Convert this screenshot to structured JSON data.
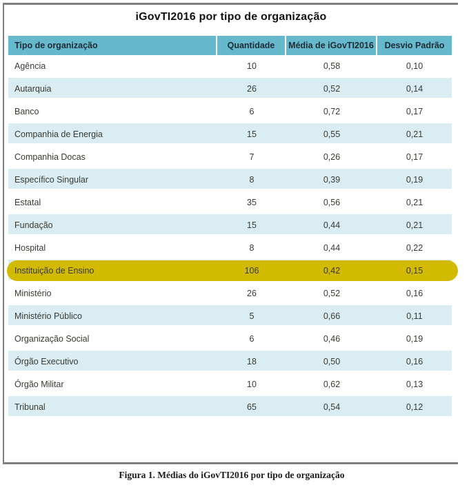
{
  "title": "iGovTI2016 por tipo de organização",
  "caption": "Figura 1. Médias do iGovTI2016 por tipo de organização",
  "colors": {
    "header_bg": "#66B8CD",
    "row_alt_bg": "#D9EDF3",
    "highlight_bg": "#D1BA00",
    "frame_border": "#7F7F7F",
    "header_text": "#1C2B33",
    "body_text": "#3A3A32"
  },
  "table": {
    "columns": [
      "Tipo de organização",
      "Quantidade",
      "Média de iGovTI2016",
      "Desvio Padrão"
    ],
    "rows": [
      {
        "tipo": "Agência",
        "quantidade": "10",
        "media": "0,58",
        "desvio": "0,10",
        "highlight": false
      },
      {
        "tipo": "Autarquia",
        "quantidade": "26",
        "media": "0,52",
        "desvio": "0,14",
        "highlight": false
      },
      {
        "tipo": "Banco",
        "quantidade": "6",
        "media": "0,72",
        "desvio": "0,17",
        "highlight": false
      },
      {
        "tipo": "Companhia de Energia",
        "quantidade": "15",
        "media": "0,55",
        "desvio": "0,21",
        "highlight": false
      },
      {
        "tipo": "Companhia Docas",
        "quantidade": "7",
        "media": "0,26",
        "desvio": "0,17",
        "highlight": false
      },
      {
        "tipo": "Específico Singular",
        "quantidade": "8",
        "media": "0,39",
        "desvio": "0,19",
        "highlight": false
      },
      {
        "tipo": "Estatal",
        "quantidade": "35",
        "media": "0,56",
        "desvio": "0,21",
        "highlight": false
      },
      {
        "tipo": "Fundação",
        "quantidade": "15",
        "media": "0,44",
        "desvio": "0,21",
        "highlight": false
      },
      {
        "tipo": "Hospital",
        "quantidade": "8",
        "media": "0,44",
        "desvio": "0,22",
        "highlight": false
      },
      {
        "tipo": "Instituição de Ensino",
        "quantidade": "106",
        "media": "0,42",
        "desvio": "0,15",
        "highlight": true
      },
      {
        "tipo": "Ministério",
        "quantidade": "26",
        "media": "0,52",
        "desvio": "0,16",
        "highlight": false
      },
      {
        "tipo": "Ministério Público",
        "quantidade": "5",
        "media": "0,66",
        "desvio": "0,11",
        "highlight": false
      },
      {
        "tipo": "Organização Social",
        "quantidade": "6",
        "media": "0,46",
        "desvio": "0,19",
        "highlight": false
      },
      {
        "tipo": "Órgão Executivo",
        "quantidade": "18",
        "media": "0,50",
        "desvio": "0,16",
        "highlight": false
      },
      {
        "tipo": "Órgão Militar",
        "quantidade": "10",
        "media": "0,62",
        "desvio": "0,13",
        "highlight": false
      },
      {
        "tipo": "Tribunal",
        "quantidade": "65",
        "media": "0,54",
        "desvio": "0,12",
        "highlight": false
      }
    ]
  },
  "chart_data": {
    "type": "table",
    "title": "iGovTI2016 por tipo de organização",
    "columns": [
      "Tipo de organização",
      "Quantidade",
      "Média de iGovTI2016",
      "Desvio Padrão"
    ],
    "categories": [
      "Agência",
      "Autarquia",
      "Banco",
      "Companhia de Energia",
      "Companhia Docas",
      "Específico Singular",
      "Estatal",
      "Fundação",
      "Hospital",
      "Instituição de Ensino",
      "Ministério",
      "Ministério Público",
      "Organização Social",
      "Órgão Executivo",
      "Órgão Militar",
      "Tribunal"
    ],
    "series": [
      {
        "name": "Quantidade",
        "values": [
          10,
          26,
          6,
          15,
          7,
          8,
          35,
          15,
          8,
          106,
          26,
          5,
          6,
          18,
          10,
          65
        ]
      },
      {
        "name": "Média de iGovTI2016",
        "values": [
          0.58,
          0.52,
          0.72,
          0.55,
          0.26,
          0.39,
          0.56,
          0.44,
          0.44,
          0.42,
          0.52,
          0.66,
          0.46,
          0.5,
          0.62,
          0.54
        ]
      },
      {
        "name": "Desvio Padrão",
        "values": [
          0.1,
          0.14,
          0.17,
          0.21,
          0.17,
          0.19,
          0.21,
          0.21,
          0.22,
          0.15,
          0.16,
          0.11,
          0.19,
          0.16,
          0.13,
          0.12
        ]
      }
    ],
    "highlighted_row": "Instituição de Ensino",
    "annotations": [
      "Figura 1. Médias do iGovTI2016 por tipo de organização"
    ]
  }
}
